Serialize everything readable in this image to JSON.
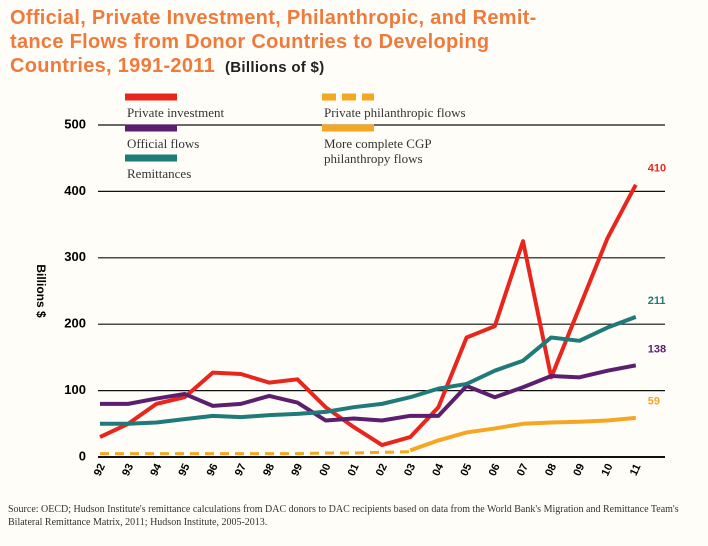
{
  "chart_data": {
    "type": "line",
    "title": [
      "Official, Private Investment, Philanthropic, and Remit-",
      "tance Flows from Donor Countries to Developing",
      "Countries, 1991-2011"
    ],
    "subtitle": "(Billions of $)",
    "ylabel": "Billions $",
    "categories": [
      "92",
      "93",
      "94",
      "95",
      "96",
      "97",
      "98",
      "99",
      "00",
      "01",
      "02",
      "03",
      "04",
      "05",
      "06",
      "07",
      "08",
      "09",
      "10",
      "11"
    ],
    "ylim": [
      0,
      500
    ],
    "yticks": [
      0,
      100,
      200,
      300,
      400,
      500
    ],
    "grid": true,
    "series": [
      {
        "name": "Private investment",
        "color": "#e8261e",
        "dash": false,
        "end_label": true,
        "values": [
          30,
          50,
          80,
          90,
          127,
          125,
          112,
          117,
          75,
          45,
          18,
          30,
          75,
          180,
          197,
          325,
          120,
          225,
          330,
          410
        ]
      },
      {
        "name": "Official flows",
        "color": "#5b1f6e",
        "dash": false,
        "end_label": true,
        "values": [
          80,
          80,
          88,
          95,
          77,
          80,
          92,
          82,
          55,
          58,
          55,
          62,
          62,
          107,
          90,
          105,
          122,
          120,
          130,
          138
        ]
      },
      {
        "name": "Remittances",
        "color": "#1f7a7a",
        "dash": false,
        "end_label": true,
        "values": [
          50,
          50,
          52,
          57,
          62,
          60,
          63,
          65,
          68,
          75,
          80,
          90,
          103,
          110,
          130,
          145,
          180,
          175,
          195,
          211
        ]
      },
      {
        "name": "Private philanthropic flows",
        "color": "#f5a623",
        "dash": true,
        "end_label": false,
        "values": [
          5,
          5,
          5,
          5,
          5,
          5,
          5,
          5,
          6,
          6,
          7,
          8,
          null,
          null,
          null,
          null,
          null,
          null,
          null,
          null
        ]
      },
      {
        "name": "More complete CGP philanthropy flows",
        "color": "#f5a623",
        "dash": false,
        "end_label": true,
        "values": [
          null,
          null,
          null,
          null,
          null,
          null,
          null,
          null,
          null,
          null,
          null,
          10,
          25,
          37,
          43,
          50,
          52,
          53,
          55,
          59
        ]
      }
    ],
    "source": "Source: OECD; Hudson Institute's remittance calculations from DAC donors to DAC recipients based on data from the World Bank's Migration and Remittance Team's Bilateral Remittance Matrix, 2011; Hudson Institute, 2005-2013."
  }
}
